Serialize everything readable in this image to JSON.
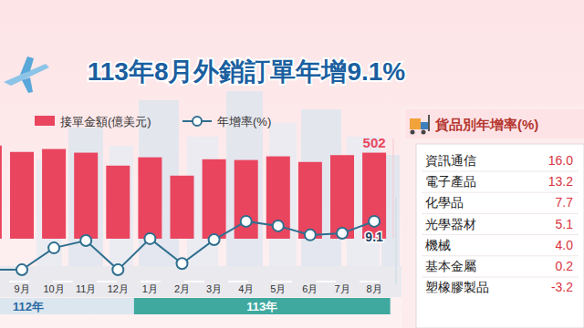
{
  "chart_data": {
    "type": "bar",
    "title": "113年8月外銷訂單年增9.1%",
    "categories": [
      null,
      "9月",
      "10月",
      "11月",
      "12月",
      "1月",
      "2月",
      "3月",
      "4月",
      "5月",
      "6月",
      "7月",
      "8月"
    ],
    "periods": [
      {
        "label": "112年",
        "from": 0,
        "to": 4
      },
      {
        "label": "113年",
        "from": 5,
        "to": 12
      }
    ],
    "series": [
      {
        "name": "接單金額(億美元)",
        "type": "bar",
        "color": "#e9455f",
        "values": [
          531,
          505,
          517,
          502,
          449,
          483,
          408,
          475,
          472,
          487,
          464,
          492,
          502
        ],
        "value_labels": [
          null,
          null,
          null,
          null,
          null,
          null,
          null,
          null,
          null,
          null,
          null,
          null,
          "502"
        ]
      },
      {
        "name": "年增率(%)",
        "type": "line",
        "axis": "y2",
        "color": "#2f6f8f",
        "marker": "circle",
        "values": [
          -13.3,
          -13.3,
          -3.2,
          0.2,
          -13.3,
          1.1,
          -10.4,
          0.6,
          9.1,
          7.0,
          2.8,
          3.6,
          9.1
        ],
        "value_labels": [
          null,
          null,
          null,
          null,
          null,
          null,
          null,
          null,
          null,
          null,
          null,
          null,
          "9.1"
        ]
      }
    ],
    "ylim": [
      150,
      560
    ],
    "y2lim": [
      -20,
      20
    ],
    "tick_labels": "x",
    "grid": false,
    "data_labels": true,
    "legend": "top"
  },
  "table": {
    "title": "貨品別年增率(%)",
    "rows": [
      [
        "資訊通信",
        "16.0"
      ],
      [
        "電子產品",
        "13.2"
      ],
      [
        "化學品",
        "7.7"
      ],
      [
        "光學器材",
        "5.1"
      ],
      [
        "機械",
        "4.0"
      ],
      [
        "基本金屬",
        "0.2"
      ],
      [
        "塑橡膠製品",
        "-3.2"
      ]
    ]
  }
}
